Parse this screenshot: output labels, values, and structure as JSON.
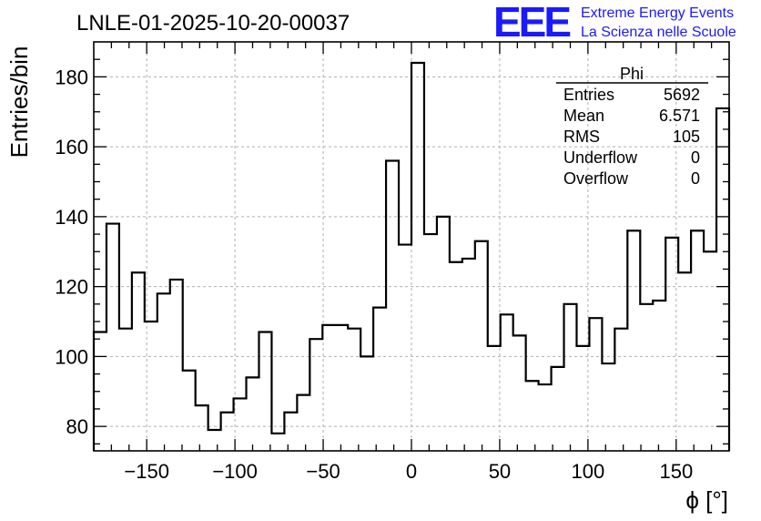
{
  "chart_data": {
    "type": "histogram",
    "title": "LNLE-01-2025-10-20-00037",
    "xlabel": "ϕ [°]",
    "ylabel": "Entries/bin",
    "xlim": [
      -180,
      180
    ],
    "ylim": [
      73,
      190
    ],
    "bin_width": 7.2,
    "x_ticks": [
      -150,
      -100,
      -50,
      0,
      50,
      100,
      150
    ],
    "x_tick_labels": [
      "−150",
      "−100",
      "−50",
      "0",
      "50",
      "100",
      "150"
    ],
    "y_ticks": [
      80,
      100,
      120,
      140,
      160,
      180
    ],
    "y_tick_labels": [
      "80",
      "100",
      "120",
      "140",
      "160",
      "180"
    ],
    "grid": true,
    "grid_style": "dashed",
    "values": [
      107,
      138,
      108,
      124,
      110,
      118,
      122,
      96,
      86,
      79,
      84,
      88,
      94,
      107,
      78,
      84,
      89,
      105,
      109,
      109,
      108,
      100,
      114,
      156,
      132,
      184,
      135,
      140,
      127,
      128,
      133,
      103,
      112,
      106,
      93,
      92,
      97,
      115,
      103,
      111,
      98,
      108,
      136,
      115,
      116,
      134,
      124,
      136,
      130,
      171
    ],
    "stats_box": {
      "name": "Phi",
      "placement": "top-right",
      "rows": [
        {
          "label": "Entries",
          "value": "5692"
        },
        {
          "label": "Mean",
          "value": "6.571"
        },
        {
          "label": "RMS",
          "value": "105"
        },
        {
          "label": "Underflow",
          "value": "0"
        },
        {
          "label": "Overflow",
          "value": "0"
        }
      ]
    }
  },
  "logo": {
    "mark": "EEE",
    "line1": "Extreme Energy Events",
    "line2": "La Scienza nelle Scuole",
    "color": "#1a1aff"
  }
}
